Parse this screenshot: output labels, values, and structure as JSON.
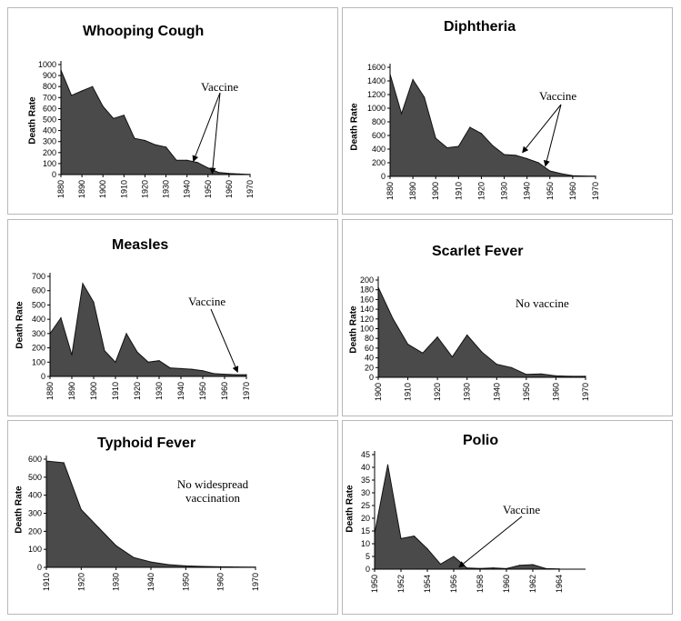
{
  "colors": {
    "fill": "#4a4a4a",
    "stroke": "#111111",
    "axis": "#000000",
    "frame": "#b8b8b8"
  },
  "chart_data": [
    {
      "type": "area",
      "title": "Whooping Cough",
      "ylabel": "Death Rate",
      "xlabel": "",
      "x": [
        1880,
        1885,
        1890,
        1895,
        1900,
        1905,
        1910,
        1915,
        1920,
        1925,
        1930,
        1935,
        1940,
        1945,
        1950,
        1955,
        1960,
        1965,
        1970
      ],
      "values": [
        950,
        720,
        760,
        800,
        620,
        510,
        540,
        330,
        310,
        270,
        250,
        130,
        130,
        110,
        60,
        20,
        10,
        5,
        2
      ],
      "xlim": [
        1880,
        1970
      ],
      "ylim": [
        0,
        1000
      ],
      "xticks": [
        1880,
        1890,
        1900,
        1910,
        1920,
        1930,
        1940,
        1950,
        1960,
        1970
      ],
      "yticks": [
        0,
        100,
        200,
        300,
        400,
        500,
        600,
        700,
        800,
        900,
        1000
      ],
      "annotation": "Vaccine",
      "arrow_targets": [
        [
          1943,
          120
        ],
        [
          1952,
          10
        ]
      ]
    },
    {
      "type": "area",
      "title": "Diphtheria",
      "ylabel": "Death Rate",
      "xlabel": "",
      "x": [
        1880,
        1885,
        1890,
        1895,
        1900,
        1905,
        1910,
        1915,
        1920,
        1925,
        1930,
        1935,
        1940,
        1945,
        1950,
        1955,
        1960,
        1965,
        1970
      ],
      "values": [
        1500,
        920,
        1420,
        1160,
        560,
        420,
        440,
        720,
        630,
        450,
        320,
        310,
        260,
        200,
        80,
        40,
        10,
        5,
        2
      ],
      "xlim": [
        1880,
        1970
      ],
      "ylim": [
        0,
        1600
      ],
      "xticks": [
        1880,
        1890,
        1900,
        1910,
        1920,
        1930,
        1940,
        1950,
        1960,
        1970
      ],
      "yticks": [
        0,
        200,
        400,
        600,
        800,
        1000,
        1200,
        1400,
        1600
      ],
      "annotation": "Vaccine",
      "arrow_targets": [
        [
          1938,
          350
        ],
        [
          1948,
          150
        ]
      ]
    },
    {
      "type": "area",
      "title": "Measles",
      "ylabel": "Death Rate",
      "xlabel": "",
      "x": [
        1880,
        1885,
        1890,
        1895,
        1900,
        1905,
        1910,
        1915,
        1920,
        1925,
        1930,
        1935,
        1940,
        1945,
        1950,
        1955,
        1960,
        1965,
        1970
      ],
      "values": [
        300,
        410,
        150,
        650,
        520,
        180,
        100,
        300,
        170,
        100,
        110,
        60,
        55,
        50,
        40,
        20,
        15,
        12,
        12
      ],
      "xlim": [
        1880,
        1970
      ],
      "ylim": [
        0,
        700
      ],
      "xticks": [
        1880,
        1890,
        1900,
        1910,
        1920,
        1930,
        1940,
        1950,
        1960,
        1970
      ],
      "yticks": [
        0,
        100,
        200,
        300,
        400,
        500,
        600,
        700
      ],
      "annotation": "Vaccine",
      "arrow_targets": [
        [
          1966,
          30
        ]
      ]
    },
    {
      "type": "area",
      "title": "Scarlet Fever",
      "ylabel": "Death Rate",
      "xlabel": "",
      "x": [
        1900,
        1905,
        1910,
        1915,
        1920,
        1925,
        1930,
        1935,
        1940,
        1945,
        1950,
        1955,
        1960,
        1965,
        1970
      ],
      "values": [
        185,
        120,
        68,
        50,
        83,
        42,
        87,
        52,
        27,
        20,
        6,
        7,
        3,
        2,
        2
      ],
      "xlim": [
        1900,
        1970
      ],
      "ylim": [
        0,
        200
      ],
      "xticks": [
        1900,
        1910,
        1920,
        1930,
        1940,
        1950,
        1960,
        1970
      ],
      "yticks": [
        0,
        20,
        40,
        60,
        80,
        100,
        120,
        140,
        160,
        180,
        200
      ],
      "annotation": "No vaccine",
      "arrow_targets": []
    },
    {
      "type": "area",
      "title": "Typhoid Fever",
      "ylabel": "Death Rate",
      "xlabel": "",
      "x": [
        1910,
        1915,
        1920,
        1925,
        1930,
        1935,
        1940,
        1945,
        1950,
        1955,
        1960,
        1965,
        1970
      ],
      "values": [
        590,
        580,
        320,
        220,
        120,
        55,
        30,
        15,
        8,
        5,
        3,
        2,
        1
      ],
      "xlim": [
        1910,
        1970
      ],
      "ylim": [
        0,
        600
      ],
      "xticks": [
        1910,
        1920,
        1930,
        1940,
        1950,
        1960,
        1970
      ],
      "yticks": [
        0,
        100,
        200,
        300,
        400,
        500,
        600
      ],
      "annotation": "No widespread vaccination",
      "arrow_targets": []
    },
    {
      "type": "area",
      "title": "Polio",
      "ylabel": "Death Rate",
      "xlabel": "",
      "x": [
        1950,
        1951,
        1952,
        1953,
        1954,
        1955,
        1956,
        1957,
        1958,
        1959,
        1960,
        1961,
        1962,
        1963,
        1964
      ],
      "values": [
        14,
        41,
        12,
        13,
        8,
        2,
        5,
        0.5,
        0.3,
        0.5,
        0.2,
        1.5,
        1.8,
        0.2,
        0.1
      ],
      "xlim": [
        1950,
        1966
      ],
      "ylim": [
        0,
        45
      ],
      "xticks": [
        1950,
        1952,
        1954,
        1956,
        1958,
        1960,
        1962,
        1964
      ],
      "yticks": [
        0,
        5,
        10,
        15,
        20,
        25,
        30,
        35,
        40,
        45
      ],
      "annotation": "Vaccine",
      "arrow_targets": [
        [
          1956.4,
          0.8
        ]
      ]
    }
  ]
}
